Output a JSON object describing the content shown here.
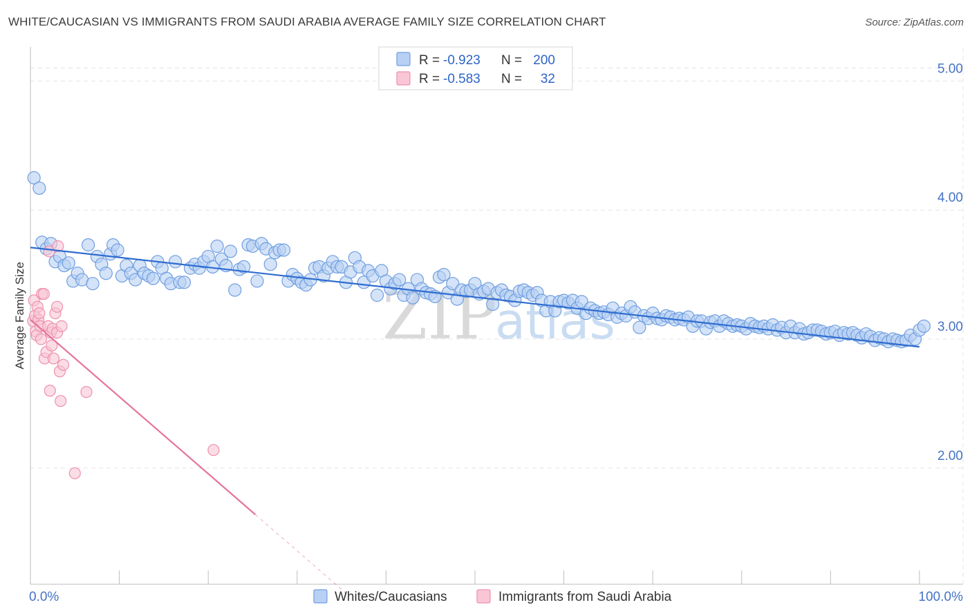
{
  "title": "WHITE/CAUCASIAN VS IMMIGRANTS FROM SAUDI ARABIA AVERAGE FAMILY SIZE CORRELATION CHART",
  "source": "Source: ZipAtlas.com",
  "watermark": {
    "zip": "ZIP",
    "atlas": "atlas"
  },
  "legend": {
    "r_label": "R =",
    "n_label": "N =",
    "items": [
      {
        "r": "-0.923",
        "n": "200"
      },
      {
        "r": "-0.583",
        "n": "32"
      }
    ]
  },
  "colors": {
    "white_fill": "#b8d0f4",
    "white_stroke": "#6f9ee0",
    "white_line": "#2e6ccf",
    "saudi_fill": "#f9c6d6",
    "saudi_stroke": "#ee90ad",
    "saudi_line": "#e5739b",
    "grid": "#e4e4e4",
    "axis_text": "#4472c4"
  },
  "chart_data": {
    "type": "scatter",
    "xlabel": "",
    "ylabel": "Average Family Size",
    "xlim": [
      0,
      100
    ],
    "ylim": [
      1.1,
      5.2
    ],
    "x_tick_labels": {
      "left": "0.0%",
      "right": "100.0%"
    },
    "y_ticks": [
      {
        "value": 2,
        "label": "2.00"
      },
      {
        "value": 3,
        "label": "3.00"
      },
      {
        "value": 4,
        "label": "4.00"
      },
      {
        "value": 5,
        "label": "5.00"
      }
    ],
    "grid": true,
    "series": [
      {
        "name": "Whites/Caucasians",
        "trend": {
          "x": [
            0,
            100
          ],
          "y": [
            3.71,
            2.94
          ]
        },
        "points": [
          [
            0.4,
            4.25
          ],
          [
            1.0,
            4.17
          ],
          [
            1.3,
            3.75
          ],
          [
            1.8,
            3.7
          ],
          [
            2.3,
            3.74
          ],
          [
            2.8,
            3.6
          ],
          [
            3.3,
            3.64
          ],
          [
            3.8,
            3.57
          ],
          [
            4.3,
            3.59
          ],
          [
            4.8,
            3.45
          ],
          [
            5.3,
            3.51
          ],
          [
            5.8,
            3.46
          ],
          [
            6.5,
            3.73
          ],
          [
            7.0,
            3.43
          ],
          [
            7.5,
            3.64
          ],
          [
            8.0,
            3.58
          ],
          [
            8.5,
            3.51
          ],
          [
            9.0,
            3.66
          ],
          [
            9.3,
            3.73
          ],
          [
            9.8,
            3.69
          ],
          [
            10.3,
            3.49
          ],
          [
            10.8,
            3.57
          ],
          [
            11.3,
            3.51
          ],
          [
            11.8,
            3.46
          ],
          [
            12.3,
            3.57
          ],
          [
            12.8,
            3.51
          ],
          [
            13.3,
            3.49
          ],
          [
            13.8,
            3.47
          ],
          [
            14.3,
            3.6
          ],
          [
            14.8,
            3.55
          ],
          [
            15.3,
            3.47
          ],
          [
            15.8,
            3.43
          ],
          [
            16.3,
            3.6
          ],
          [
            16.8,
            3.44
          ],
          [
            17.3,
            3.44
          ],
          [
            18.0,
            3.55
          ],
          [
            18.5,
            3.58
          ],
          [
            19.0,
            3.55
          ],
          [
            19.5,
            3.6
          ],
          [
            20.0,
            3.64
          ],
          [
            20.5,
            3.56
          ],
          [
            21.0,
            3.72
          ],
          [
            21.5,
            3.62
          ],
          [
            22.0,
            3.57
          ],
          [
            22.5,
            3.68
          ],
          [
            23.0,
            3.38
          ],
          [
            23.5,
            3.54
          ],
          [
            24.0,
            3.56
          ],
          [
            24.5,
            3.73
          ],
          [
            25.0,
            3.72
          ],
          [
            25.5,
            3.45
          ],
          [
            26.0,
            3.74
          ],
          [
            26.5,
            3.7
          ],
          [
            27.0,
            3.58
          ],
          [
            27.5,
            3.67
          ],
          [
            28.0,
            3.69
          ],
          [
            28.5,
            3.69
          ],
          [
            29.0,
            3.45
          ],
          [
            29.5,
            3.5
          ],
          [
            30.0,
            3.47
          ],
          [
            30.5,
            3.44
          ],
          [
            31.0,
            3.42
          ],
          [
            31.5,
            3.46
          ],
          [
            32.0,
            3.55
          ],
          [
            32.5,
            3.56
          ],
          [
            33.0,
            3.49
          ],
          [
            33.5,
            3.55
          ],
          [
            34.0,
            3.6
          ],
          [
            34.5,
            3.56
          ],
          [
            35.0,
            3.56
          ],
          [
            35.5,
            3.44
          ],
          [
            36.0,
            3.52
          ],
          [
            36.5,
            3.63
          ],
          [
            37.0,
            3.56
          ],
          [
            37.5,
            3.44
          ],
          [
            38.0,
            3.53
          ],
          [
            38.5,
            3.49
          ],
          [
            39.0,
            3.34
          ],
          [
            39.5,
            3.53
          ],
          [
            40.0,
            3.45
          ],
          [
            40.5,
            3.39
          ],
          [
            41.0,
            3.43
          ],
          [
            41.5,
            3.46
          ],
          [
            42.0,
            3.34
          ],
          [
            42.5,
            3.39
          ],
          [
            43.0,
            3.32
          ],
          [
            43.5,
            3.46
          ],
          [
            44.0,
            3.39
          ],
          [
            44.5,
            3.36
          ],
          [
            45.0,
            3.35
          ],
          [
            45.5,
            3.33
          ],
          [
            46.0,
            3.48
          ],
          [
            46.5,
            3.5
          ],
          [
            47.0,
            3.36
          ],
          [
            47.5,
            3.43
          ],
          [
            48.0,
            3.31
          ],
          [
            48.5,
            3.38
          ],
          [
            49.0,
            3.37
          ],
          [
            49.5,
            3.38
          ],
          [
            50.0,
            3.43
          ],
          [
            50.5,
            3.35
          ],
          [
            51.0,
            3.37
          ],
          [
            51.5,
            3.39
          ],
          [
            52.0,
            3.27
          ],
          [
            52.5,
            3.36
          ],
          [
            53.0,
            3.38
          ],
          [
            53.5,
            3.34
          ],
          [
            54.0,
            3.33
          ],
          [
            54.5,
            3.3
          ],
          [
            55.0,
            3.37
          ],
          [
            55.5,
            3.38
          ],
          [
            56.0,
            3.36
          ],
          [
            56.5,
            3.34
          ],
          [
            57.0,
            3.36
          ],
          [
            57.5,
            3.3
          ],
          [
            58.0,
            3.22
          ],
          [
            58.5,
            3.29
          ],
          [
            59.0,
            3.22
          ],
          [
            59.5,
            3.29
          ],
          [
            60.0,
            3.3
          ],
          [
            60.5,
            3.28
          ],
          [
            61.0,
            3.3
          ],
          [
            61.5,
            3.24
          ],
          [
            62.0,
            3.29
          ],
          [
            62.5,
            3.2
          ],
          [
            63.0,
            3.24
          ],
          [
            63.5,
            3.22
          ],
          [
            64.0,
            3.2
          ],
          [
            64.5,
            3.21
          ],
          [
            65.0,
            3.19
          ],
          [
            65.5,
            3.24
          ],
          [
            66.0,
            3.17
          ],
          [
            66.5,
            3.2
          ],
          [
            67.0,
            3.18
          ],
          [
            67.5,
            3.25
          ],
          [
            68.0,
            3.21
          ],
          [
            68.5,
            3.09
          ],
          [
            69.0,
            3.18
          ],
          [
            69.5,
            3.16
          ],
          [
            70.0,
            3.2
          ],
          [
            70.5,
            3.16
          ],
          [
            71.0,
            3.15
          ],
          [
            71.5,
            3.18
          ],
          [
            72.0,
            3.17
          ],
          [
            72.5,
            3.15
          ],
          [
            73.0,
            3.16
          ],
          [
            73.5,
            3.15
          ],
          [
            74.0,
            3.17
          ],
          [
            74.5,
            3.1
          ],
          [
            75.0,
            3.14
          ],
          [
            75.5,
            3.14
          ],
          [
            76.0,
            3.08
          ],
          [
            76.5,
            3.13
          ],
          [
            77.0,
            3.14
          ],
          [
            77.5,
            3.1
          ],
          [
            78.0,
            3.14
          ],
          [
            78.5,
            3.12
          ],
          [
            79.0,
            3.1
          ],
          [
            79.5,
            3.11
          ],
          [
            80.0,
            3.1
          ],
          [
            80.5,
            3.08
          ],
          [
            81.0,
            3.12
          ],
          [
            81.5,
            3.1
          ],
          [
            82.0,
            3.09
          ],
          [
            82.5,
            3.1
          ],
          [
            83.0,
            3.08
          ],
          [
            83.5,
            3.11
          ],
          [
            84.0,
            3.07
          ],
          [
            84.5,
            3.09
          ],
          [
            85.0,
            3.05
          ],
          [
            85.5,
            3.1
          ],
          [
            86.0,
            3.05
          ],
          [
            86.5,
            3.08
          ],
          [
            87.0,
            3.04
          ],
          [
            87.5,
            3.05
          ],
          [
            88.0,
            3.07
          ],
          [
            88.5,
            3.07
          ],
          [
            89.0,
            3.06
          ],
          [
            89.5,
            3.04
          ],
          [
            90.0,
            3.05
          ],
          [
            90.5,
            3.06
          ],
          [
            91.0,
            3.03
          ],
          [
            91.5,
            3.05
          ],
          [
            92.0,
            3.04
          ],
          [
            92.5,
            3.05
          ],
          [
            93.0,
            3.03
          ],
          [
            93.5,
            3.01
          ],
          [
            94.0,
            3.04
          ],
          [
            94.5,
            3.02
          ],
          [
            95.0,
            2.99
          ],
          [
            95.5,
            3.01
          ],
          [
            96.0,
            3.0
          ],
          [
            96.5,
            2.98
          ],
          [
            97.0,
            3.0
          ],
          [
            97.5,
            2.99
          ],
          [
            98.0,
            2.98
          ],
          [
            98.5,
            2.99
          ],
          [
            99.0,
            3.03
          ],
          [
            99.5,
            3.0
          ],
          [
            100.0,
            3.07
          ],
          [
            100.5,
            3.1
          ]
        ]
      },
      {
        "name": "Immigrants from Saudi Arabia",
        "trend": {
          "x": [
            0,
            25.3
          ],
          "y": [
            3.15,
            1.64
          ],
          "dash_to": {
            "x": 35.5,
            "y": 1.03
          }
        },
        "points": [
          [
            0.3,
            3.14
          ],
          [
            0.4,
            3.3
          ],
          [
            0.5,
            3.18
          ],
          [
            0.6,
            3.06
          ],
          [
            0.7,
            3.03
          ],
          [
            0.8,
            3.25
          ],
          [
            0.9,
            3.15
          ],
          [
            1.0,
            3.2
          ],
          [
            1.1,
            3.1
          ],
          [
            1.2,
            3.0
          ],
          [
            1.3,
            3.35
          ],
          [
            1.5,
            3.35
          ],
          [
            1.6,
            2.85
          ],
          [
            1.8,
            2.9
          ],
          [
            2.0,
            3.1
          ],
          [
            2.1,
            3.68
          ],
          [
            2.2,
            2.6
          ],
          [
            2.3,
            3.05
          ],
          [
            2.4,
            2.95
          ],
          [
            2.5,
            3.08
          ],
          [
            2.6,
            2.85
          ],
          [
            2.8,
            3.2
          ],
          [
            3.0,
            3.25
          ],
          [
            3.0,
            3.05
          ],
          [
            3.1,
            3.72
          ],
          [
            3.3,
            2.75
          ],
          [
            3.4,
            2.52
          ],
          [
            3.5,
            3.1
          ],
          [
            3.7,
            2.8
          ],
          [
            5.0,
            1.96
          ],
          [
            6.3,
            2.59
          ],
          [
            20.6,
            2.14
          ]
        ]
      }
    ]
  }
}
